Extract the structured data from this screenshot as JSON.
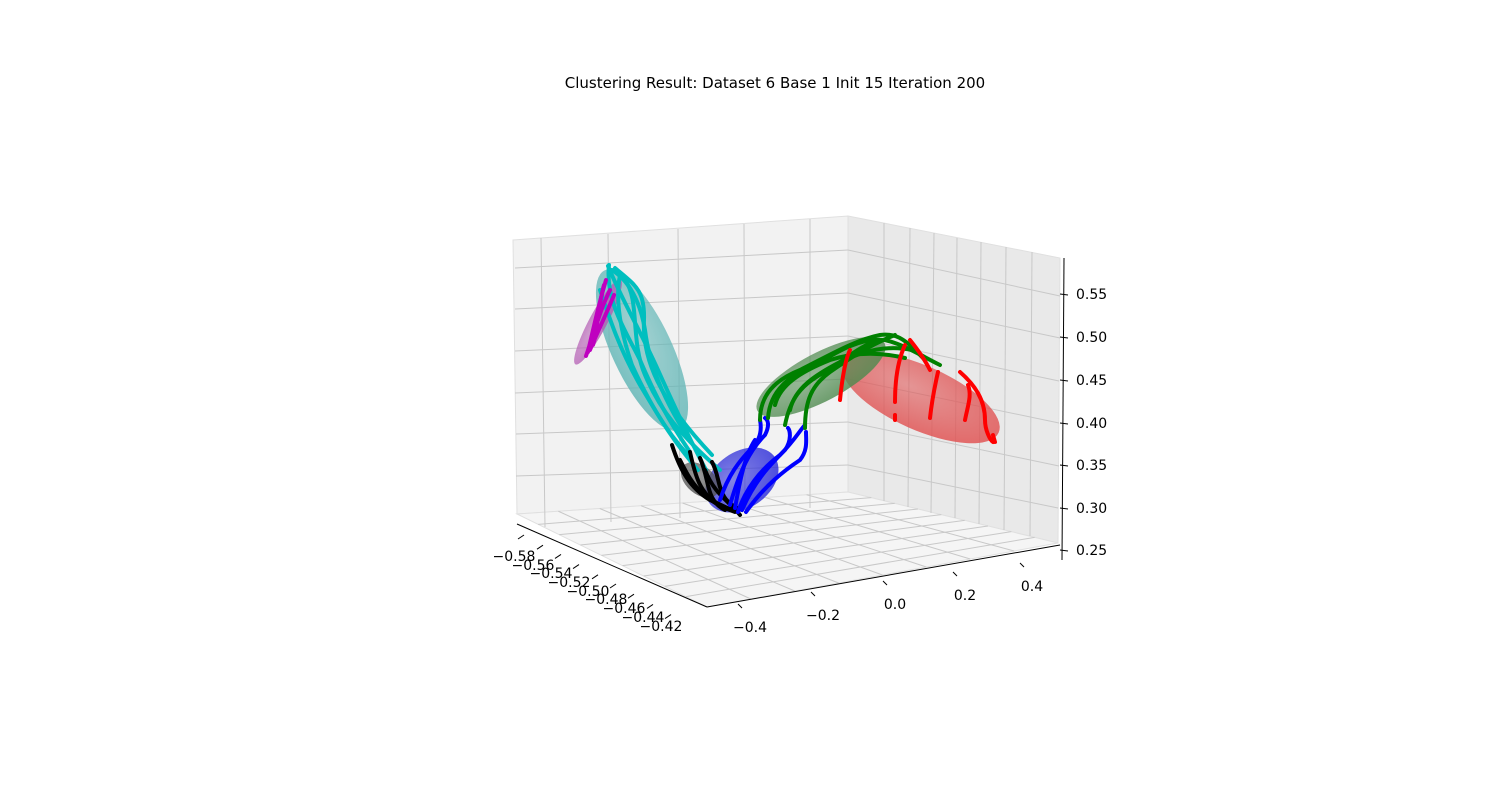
{
  "chart_data": {
    "type": "3d-line",
    "title": "Clustering Result: Dataset 6 Base 1 Init 15 Iteration 200",
    "xlabel": "",
    "ylabel": "",
    "zlabel": "",
    "grid": true,
    "x_ticks": [
      "−0.58",
      "−0.56",
      "−0.54",
      "−0.52",
      "−0.50",
      "−0.48",
      "−0.46",
      "−0.44",
      "−0.42"
    ],
    "y_ticks": [
      "−0.4",
      "−0.2",
      "0.0",
      "0.2",
      "0.4"
    ],
    "z_ticks": [
      "0.25",
      "0.30",
      "0.35",
      "0.40",
      "0.45",
      "0.50",
      "0.55"
    ],
    "xlim": [
      -0.585,
      -0.415
    ],
    "ylim": [
      -0.5,
      0.5
    ],
    "zlim": [
      0.23,
      0.58
    ],
    "clusters": [
      {
        "color": "#ff0000",
        "ellipsoid_color": "#e05050"
      },
      {
        "color": "#008000",
        "ellipsoid_color": "#4f8a4f"
      },
      {
        "color": "#0000ff",
        "ellipsoid_color": "#2b2bd9"
      },
      {
        "color": "#000000",
        "ellipsoid_color": "#555555"
      },
      {
        "color": "#00bfbf",
        "ellipsoid_color": "#5fb5b5"
      },
      {
        "color": "#bf00bf",
        "ellipsoid_color": "#b35ab3"
      }
    ]
  }
}
